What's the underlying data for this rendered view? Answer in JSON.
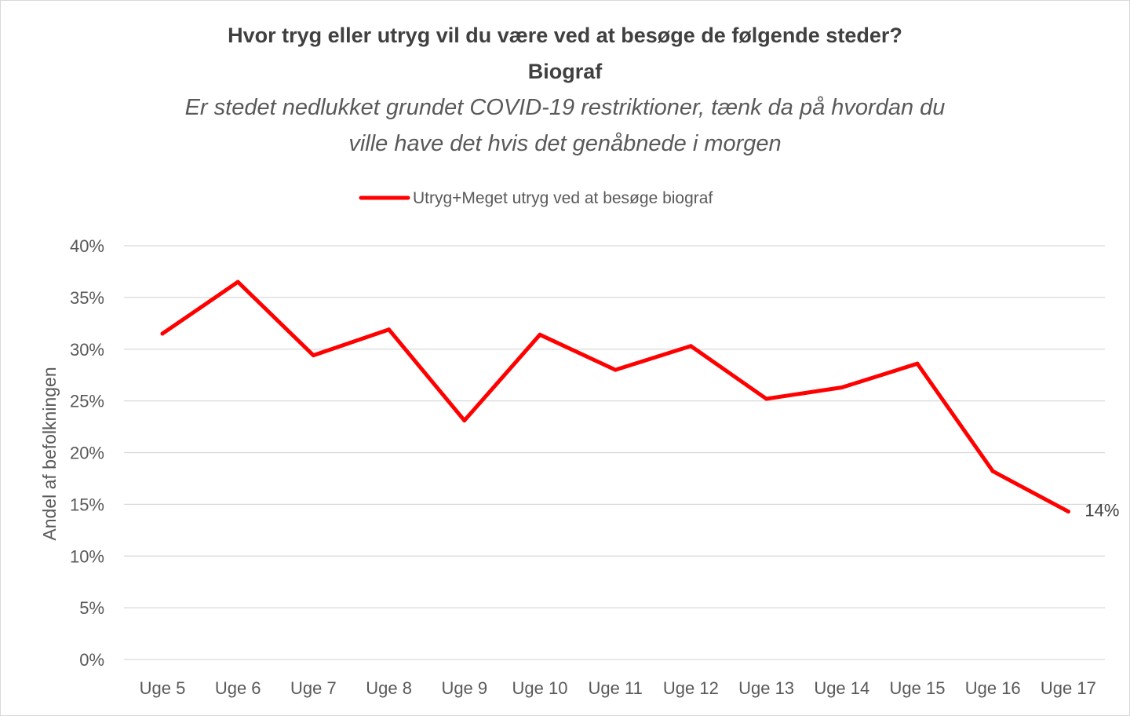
{
  "chart_data": {
    "type": "line",
    "title": "Hvor tryg eller utryg vil du være ved at besøge de følgende steder?",
    "title_line2": "Biograf",
    "subtitle_line1": "Er stedet nedlukket grundet COVID-19 restriktioner, tænk da på hvordan du",
    "subtitle_line2": "ville have det hvis det genåbnede i morgen",
    "ylabel": "Andel af befolkningen",
    "xlabel": "",
    "categories": [
      "Uge 5",
      "Uge 6",
      "Uge 7",
      "Uge 8",
      "Uge 9",
      "Uge 10",
      "Uge 11",
      "Uge 12",
      "Uge 13",
      "Uge 14",
      "Uge 15",
      "Uge 16",
      "Uge 17"
    ],
    "series": [
      {
        "name": "Utryg+Meget utryg ved at besøge biograf",
        "color": "#ff0000",
        "values": [
          31.5,
          36.5,
          29.4,
          31.9,
          23.1,
          31.4,
          28.0,
          30.3,
          25.2,
          26.3,
          28.6,
          18.2,
          14.3
        ]
      }
    ],
    "ylim": [
      0,
      40
    ],
    "yticks": [
      "0%",
      "5%",
      "10%",
      "15%",
      "20%",
      "25%",
      "30%",
      "35%",
      "40%"
    ],
    "data_labels": [
      {
        "index": 12,
        "text": "14%"
      }
    ],
    "grid": true,
    "legend_position": "top"
  }
}
